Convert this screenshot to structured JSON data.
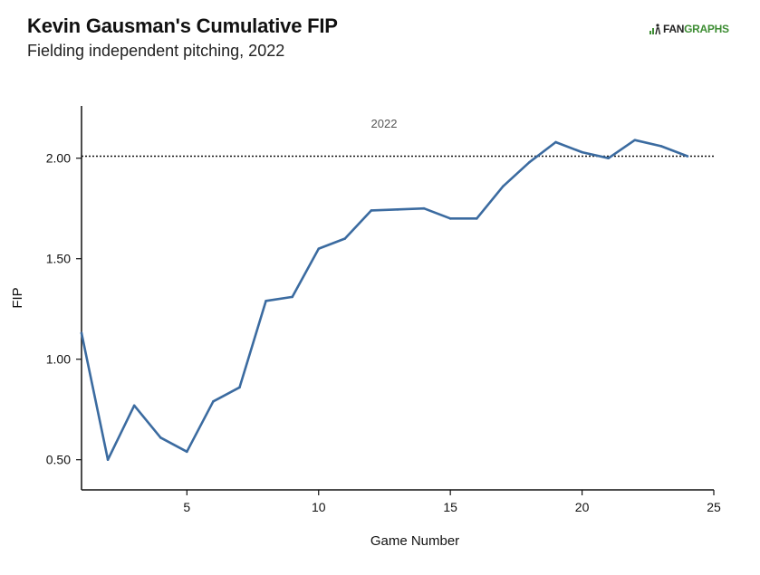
{
  "header": {
    "title": "Kevin Gausman's Cumulative FIP",
    "subtitle": "Fielding independent pitching, 2022",
    "logo_text_a": "FAN",
    "logo_text_b": "GRAPHS"
  },
  "colors": {
    "line": "#3b6ba0",
    "axis": "#111111",
    "reference": "#111111",
    "logo_green": "#3d8d33"
  },
  "chart_data": {
    "type": "line",
    "title": "Kevin Gausman's Cumulative FIP",
    "subtitle": "Fielding independent pitching, 2022",
    "xlabel": "Game Number",
    "ylabel": "FIP",
    "xlim": [
      1,
      25
    ],
    "ylim": [
      0.35,
      2.26
    ],
    "xticks": [
      5,
      10,
      15,
      20,
      25
    ],
    "yticks": [
      0.5,
      1.0,
      1.5,
      2.0
    ],
    "ytick_labels": [
      "0.50",
      "1.00",
      "1.50",
      "2.00"
    ],
    "grid": false,
    "series": [
      {
        "x": [
          1,
          2,
          3,
          4,
          5,
          6,
          7,
          8,
          9,
          10,
          11,
          12,
          13,
          14,
          15,
          16,
          17,
          18,
          19,
          20,
          21,
          22,
          23,
          24
        ],
        "values": [
          1.13,
          0.5,
          0.77,
          0.61,
          0.54,
          0.79,
          0.86,
          1.29,
          1.31,
          1.55,
          1.6,
          1.74,
          1.745,
          1.75,
          1.7,
          1.7,
          1.86,
          1.98,
          2.08,
          2.03,
          2.0,
          2.09,
          2.06,
          2.01
        ]
      }
    ],
    "reference_line": {
      "y": 2.01,
      "style": "dotted",
      "label": "2022"
    }
  }
}
